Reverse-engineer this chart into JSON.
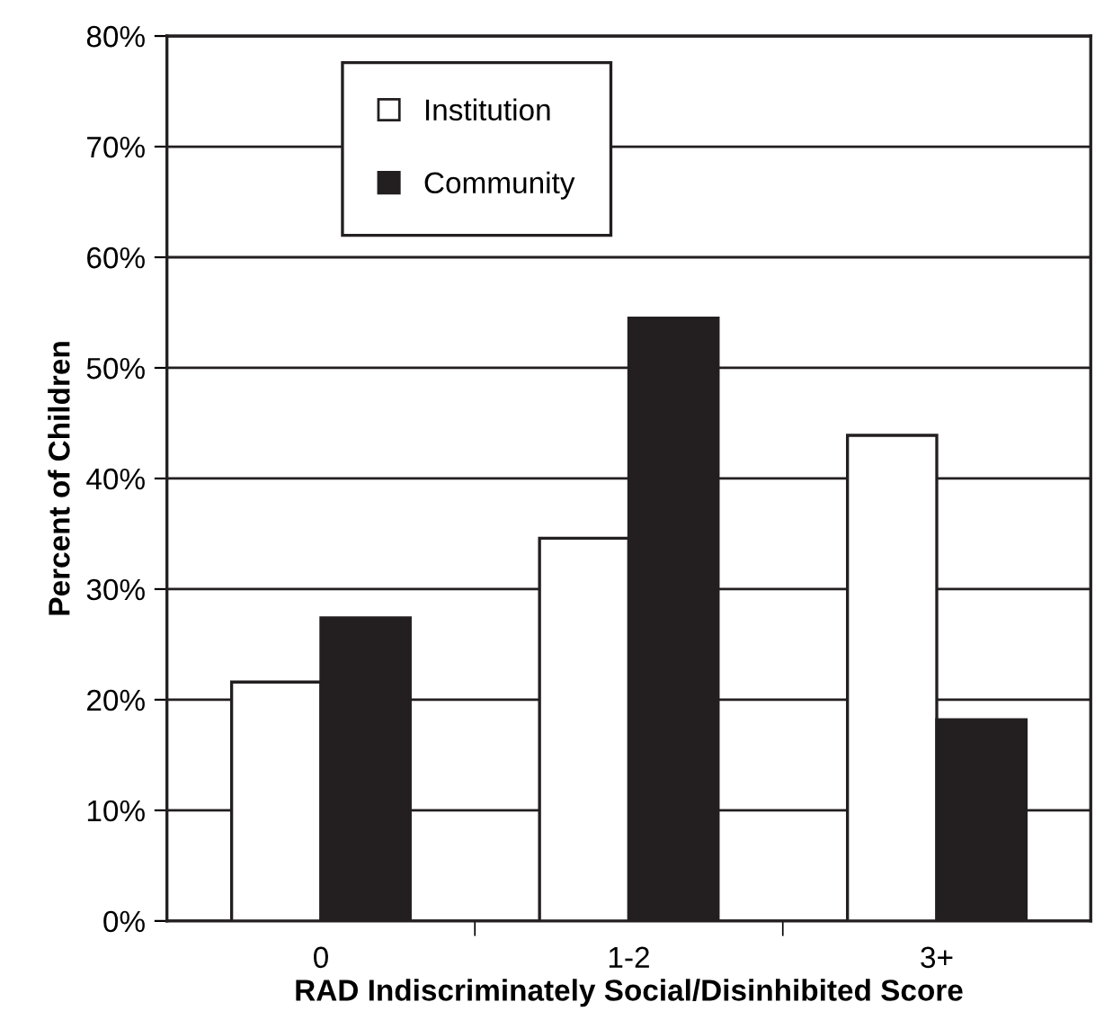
{
  "chart_data": {
    "type": "bar",
    "xlabel": "RAD Indiscriminately Social/Disinhibited Score",
    "ylabel": "Percent of Children",
    "categories": [
      "0",
      "1-2",
      "3+"
    ],
    "series": [
      {
        "name": "Institution",
        "color": "#ffffff",
        "values": [
          21.6,
          34.6,
          43.9
        ]
      },
      {
        "name": "Community",
        "color": "#231f20",
        "values": [
          27.4,
          54.5,
          18.2
        ]
      }
    ],
    "ylim": [
      0,
      80
    ],
    "yticks": [
      {
        "value": 0,
        "label": "0%"
      },
      {
        "value": 10,
        "label": "10%"
      },
      {
        "value": 20,
        "label": "20%"
      },
      {
        "value": 30,
        "label": "30%"
      },
      {
        "value": 40,
        "label": "40%"
      },
      {
        "value": 50,
        "label": "50%"
      },
      {
        "value": 60,
        "label": "60%"
      },
      {
        "value": 70,
        "label": "70%"
      },
      {
        "value": 80,
        "label": "80%"
      }
    ],
    "grid": "y",
    "legend": "top left"
  }
}
